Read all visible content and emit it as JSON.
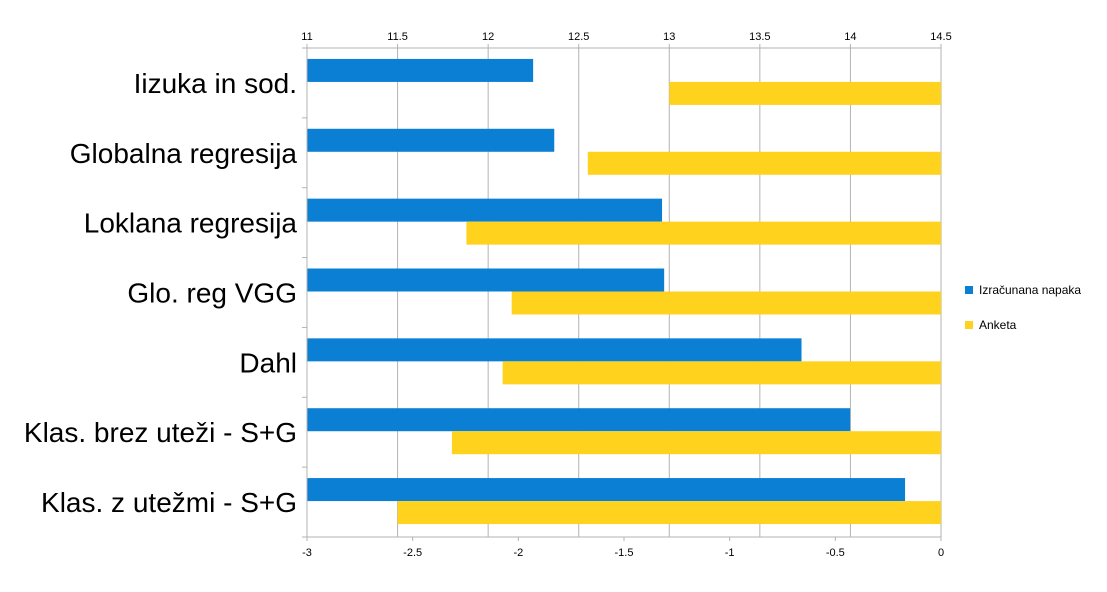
{
  "chart_data": {
    "type": "bar",
    "orientation": "horizontal",
    "categories": [
      "Iizuka in sod.",
      "Globalna regresija",
      "Loklana regresija",
      "Glo. reg VGG",
      "Dahl",
      "Klas. brez uteži - S+G",
      "Klas. z utežmi - S+G"
    ],
    "series": [
      {
        "name": "Izračunana napaka",
        "color": "#0a7fd4",
        "axis": "bottom",
        "values": [
          -1.93,
          -1.83,
          -1.32,
          -1.31,
          -0.66,
          -0.43,
          -0.17
        ]
      },
      {
        "name": "Anketa",
        "color": "#ffd21e",
        "axis": "top",
        "values": [
          13.0,
          12.55,
          11.88,
          12.13,
          12.08,
          11.8,
          11.5
        ]
      }
    ],
    "top_axis": {
      "range": [
        11,
        14.5
      ],
      "ticks": [
        "11",
        "11.5",
        "12",
        "12.5",
        "13",
        "13.5",
        "14",
        "14.5"
      ]
    },
    "bottom_axis": {
      "range": [
        -3,
        0
      ],
      "ticks": [
        "-3",
        "-2.5",
        "-2",
        "-1.5",
        "-1",
        "-0.5",
        "0"
      ]
    },
    "grid": true,
    "legend": "right"
  }
}
